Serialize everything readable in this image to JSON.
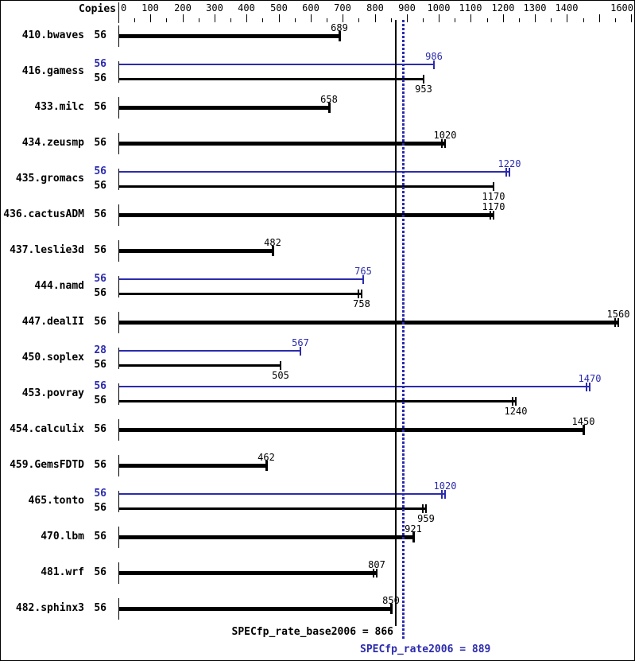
{
  "chart_data": {
    "type": "bar",
    "orientation": "horizontal",
    "copies_header": "Copies",
    "colors": {
      "base": "#000000",
      "peak": "#2b2bae"
    },
    "axis": {
      "min": 0,
      "max": 1600,
      "major_tick_step": 100,
      "minor_tick_step": 50,
      "tick_labels": [
        0,
        100,
        200,
        300,
        400,
        500,
        600,
        700,
        800,
        900,
        1000,
        1100,
        1200,
        1300,
        1400,
        1600
      ]
    },
    "benchmarks": [
      {
        "name": "410.bwaves",
        "bars": [
          {
            "type": "base",
            "copies": 56,
            "value": 689,
            "marker": "single"
          }
        ]
      },
      {
        "name": "416.gamess",
        "bars": [
          {
            "type": "peak",
            "copies": 56,
            "value": 986,
            "marker": "single"
          },
          {
            "type": "base",
            "copies": 56,
            "value": 953,
            "marker": "single"
          }
        ]
      },
      {
        "name": "433.milc",
        "bars": [
          {
            "type": "base",
            "copies": 56,
            "value": 658,
            "marker": "single"
          }
        ]
      },
      {
        "name": "434.zeusmp",
        "bars": [
          {
            "type": "base",
            "copies": 56,
            "value": 1020,
            "marker": "double"
          }
        ]
      },
      {
        "name": "435.gromacs",
        "bars": [
          {
            "type": "peak",
            "copies": 56,
            "value": 1220,
            "marker": "double"
          },
          {
            "type": "base",
            "copies": 56,
            "value": 1170,
            "marker": "single"
          }
        ]
      },
      {
        "name": "436.cactusADM",
        "bars": [
          {
            "type": "base",
            "copies": 56,
            "value": 1170,
            "marker": "double"
          }
        ]
      },
      {
        "name": "437.leslie3d",
        "bars": [
          {
            "type": "base",
            "copies": 56,
            "value": 482,
            "marker": "single"
          }
        ]
      },
      {
        "name": "444.namd",
        "bars": [
          {
            "type": "peak",
            "copies": 56,
            "value": 765,
            "marker": "single"
          },
          {
            "type": "base",
            "copies": 56,
            "value": 758,
            "marker": "double"
          }
        ]
      },
      {
        "name": "447.dealII",
        "bars": [
          {
            "type": "base",
            "copies": 56,
            "value": 1560,
            "marker": "double"
          }
        ]
      },
      {
        "name": "450.soplex",
        "bars": [
          {
            "type": "peak",
            "copies": 28,
            "value": 567,
            "marker": "single"
          },
          {
            "type": "base",
            "copies": 56,
            "value": 505,
            "marker": "single"
          }
        ]
      },
      {
        "name": "453.povray",
        "bars": [
          {
            "type": "peak",
            "copies": 56,
            "value": 1470,
            "marker": "double"
          },
          {
            "type": "base",
            "copies": 56,
            "value": 1240,
            "marker": "double"
          }
        ]
      },
      {
        "name": "454.calculix",
        "bars": [
          {
            "type": "base",
            "copies": 56,
            "value": 1450,
            "marker": "single"
          }
        ]
      },
      {
        "name": "459.GemsFDTD",
        "bars": [
          {
            "type": "base",
            "copies": 56,
            "value": 462,
            "marker": "single"
          }
        ]
      },
      {
        "name": "465.tonto",
        "bars": [
          {
            "type": "peak",
            "copies": 56,
            "value": 1020,
            "marker": "double"
          },
          {
            "type": "base",
            "copies": 56,
            "value": 959,
            "marker": "double"
          }
        ]
      },
      {
        "name": "470.lbm",
        "bars": [
          {
            "type": "base",
            "copies": 56,
            "value": 921,
            "marker": "single"
          }
        ]
      },
      {
        "name": "481.wrf",
        "bars": [
          {
            "type": "base",
            "copies": 56,
            "value": 807,
            "marker": "double"
          }
        ]
      },
      {
        "name": "482.sphinx3",
        "bars": [
          {
            "type": "base",
            "copies": 56,
            "value": 850,
            "marker": "single"
          }
        ]
      }
    ],
    "reference_lines": [
      {
        "label": "SPECfp_rate_base2006 = 866",
        "value": 866,
        "style": "solid",
        "color": "#000000"
      },
      {
        "label": "SPECfp_rate2006 = 889",
        "value": 889,
        "style": "dotted",
        "color": "#2b2bae"
      }
    ]
  }
}
